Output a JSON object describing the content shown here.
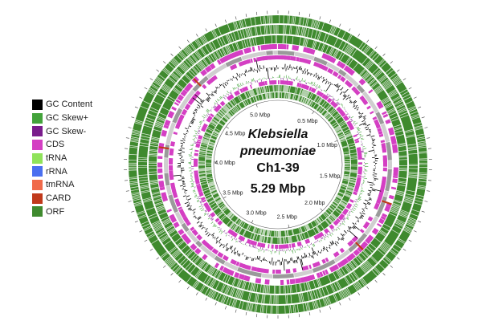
{
  "legend": [
    {
      "label": "GC Content",
      "color": "#000000"
    },
    {
      "label": "GC Skew+",
      "color": "#43a33b"
    },
    {
      "label": "GC Skew-",
      "color": "#7a1c8c"
    },
    {
      "label": "CDS",
      "color": "#d43fc3"
    },
    {
      "label": "tRNA",
      "color": "#8fe35a"
    },
    {
      "label": "rRNA",
      "color": "#4a6ff0"
    },
    {
      "label": "tmRNA",
      "color": "#f06a4a"
    },
    {
      "label": "CARD",
      "color": "#c0391b"
    },
    {
      "label": "ORF",
      "color": "#3f8a2e"
    }
  ],
  "genome": {
    "species_line1": "Klebsiella",
    "species_line2": "pneumoniae",
    "strain": "Ch1-39",
    "size": "5.29 Mbp",
    "length_mbp": 5.29
  },
  "scale_labels": [
    "0.5 Mbp",
    "1.0 Mbp",
    "1.5 Mbp",
    "2.0 Mbp",
    "2.5 Mbp",
    "3.0 Mbp",
    "3.5 Mbp",
    "4.0 Mbp",
    "4.5 Mbp",
    "5.0 Mbp"
  ],
  "scale_positions_mbp": [
    0.5,
    1.0,
    1.5,
    2.0,
    2.5,
    3.0,
    3.5,
    4.0,
    4.5,
    5.0
  ],
  "colors": {
    "orf": "#3f8a2e",
    "cds": "#d43fc3",
    "contig_grey": "#9a9a9a",
    "contig_light": "#cfcfcf",
    "gc_content": "#000000",
    "gc_skew_pos": "#43a33b",
    "gc_skew_neg": "#7a1c8c",
    "card": "#c0391b",
    "stripe": "#ffffff"
  }
}
